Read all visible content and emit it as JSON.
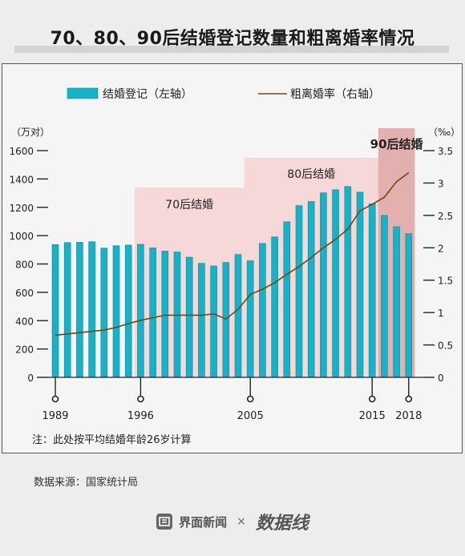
{
  "title": "70、80、90后结婚登记数量和粗离婚率情况",
  "note": "注：此处按平均结婚年龄26岁计算",
  "source": "数据来源：国家统计局",
  "footer": {
    "brand1": "界面新闻",
    "times": "×",
    "brand2": "数据线"
  },
  "colors": {
    "bar": "#1ab0c5",
    "bar_edge": "#0a8fa3",
    "line": "#6b4a12",
    "band": "#f6d2d2",
    "band90": "#dc9898"
  },
  "chart_data": {
    "type": "bar+line",
    "title": "70、80、90后结婚登记数量和粗离婚率情况",
    "y_left_unit": "（万对）",
    "y_right_unit": "（‰）",
    "y_left_lim": [
      0,
      1600
    ],
    "y_right_lim": [
      0,
      3.5
    ],
    "y_left_ticks": [
      "0",
      "200",
      "400",
      "600",
      "800",
      "1000",
      "1200",
      "1400",
      "1600"
    ],
    "y_right_ticks": [
      "0",
      "0.5",
      "1",
      "1.5",
      "2",
      "2.5",
      "3",
      "3.5"
    ],
    "x_ticks": [
      "1989",
      "1996",
      "2005",
      "2015",
      "2018"
    ],
    "legend": [
      {
        "name": "结婚登记（左轴）",
        "kind": "bar"
      },
      {
        "name": "粗离婚率（右轴）",
        "kind": "line"
      }
    ],
    "legend_position": "top",
    "grid": false,
    "annotations": [
      {
        "label": "70后结婚",
        "from": 1996,
        "to": 2004
      },
      {
        "label": "80后结婚",
        "from": 2005,
        "to": 2015
      },
      {
        "label": "90后结婚",
        "from": 2016,
        "to": 2018
      }
    ],
    "x": [
      1989,
      1990,
      1991,
      1992,
      1993,
      1994,
      1995,
      1996,
      1997,
      1998,
      1999,
      2000,
      2001,
      2002,
      2003,
      2004,
      2005,
      2006,
      2007,
      2008,
      2009,
      2010,
      2011,
      2012,
      2013,
      2014,
      2015,
      2016,
      2017,
      2018
    ],
    "series": [
      {
        "name": "结婚登记（左轴）",
        "axis": "left",
        "kind": "bar",
        "values": [
          937,
          951,
          953,
          957,
          912,
          929,
          934,
          939,
          914,
          891,
          885,
          848,
          805,
          786,
          811,
          867,
          823,
          945,
          991,
          1098,
          1212,
          1241,
          1302,
          1324,
          1347,
          1307,
          1225,
          1143,
          1063,
          1014
        ]
      },
      {
        "name": "粗离婚率（右轴）",
        "axis": "right",
        "kind": "line",
        "values": [
          0.65,
          0.67,
          0.69,
          0.71,
          0.73,
          0.77,
          0.83,
          0.88,
          0.92,
          0.96,
          0.96,
          0.96,
          0.96,
          0.98,
          0.9,
          1.05,
          1.28,
          1.36,
          1.46,
          1.59,
          1.71,
          1.85,
          2.0,
          2.13,
          2.29,
          2.57,
          2.67,
          2.78,
          3.02,
          3.16
        ]
      }
    ]
  }
}
